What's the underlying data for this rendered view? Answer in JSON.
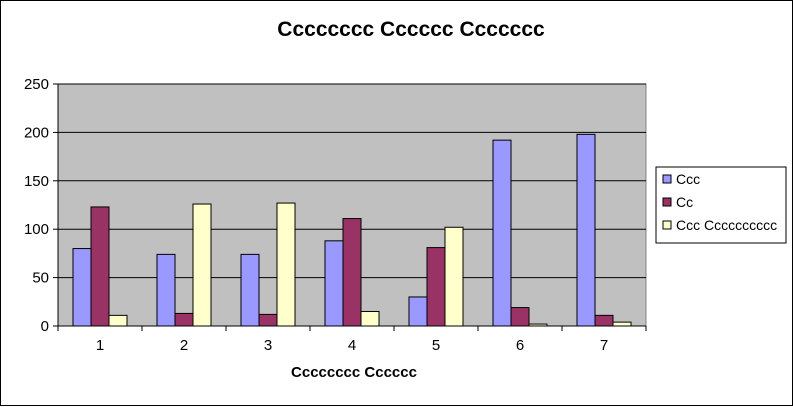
{
  "chart_data": {
    "type": "bar",
    "title": "Cccccccc Cccccc Ccccccc",
    "xlabel": "Cccccccc Cccccc",
    "ylabel": "",
    "categories": [
      "1",
      "2",
      "3",
      "4",
      "5",
      "6",
      "7"
    ],
    "ylim": [
      0,
      250
    ],
    "yticks": [
      0,
      50,
      100,
      150,
      200,
      250
    ],
    "grid": true,
    "legend_position": "right",
    "plot_background": "#c0c0c0",
    "series": [
      {
        "name": "Ccc",
        "color": "#9999ff",
        "values": [
          80,
          74,
          74,
          88,
          30,
          192,
          198
        ]
      },
      {
        "name": "Cc",
        "color": "#993366",
        "values": [
          123,
          13,
          12,
          111,
          81,
          19,
          11
        ]
      },
      {
        "name": "Ccc Cccccccccc",
        "color": "#ffffcc",
        "values": [
          11,
          126,
          127,
          15,
          102,
          2,
          4
        ]
      }
    ]
  }
}
